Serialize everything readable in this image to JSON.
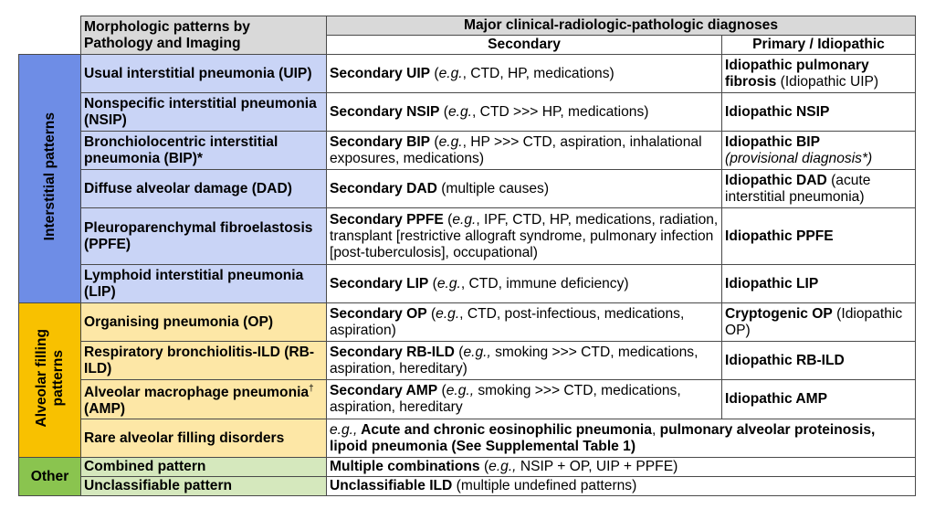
{
  "header": {
    "morpho_line1": "Morphologic patterns by",
    "morpho_line2": "Pathology and Imaging",
    "major": "Major clinical-radiologic-pathologic  diagnoses",
    "secondary": "Secondary",
    "primary": "Primary / Idiopathic"
  },
  "categories": {
    "interstitial": "Interstitial patterns",
    "alveolar_line1": "Alveolar filling",
    "alveolar_line2": "patterns",
    "other": "Other"
  },
  "rows": [
    {
      "pattern": "Usual interstitial pneumonia (UIP)",
      "sec_bold": "Secondary UIP",
      "sec_open": " (",
      "sec_eg": "e.g.",
      "sec_rest": ", CTD, HP, medications)",
      "pri_bold": "Idiopathic pulmonary fibrosis",
      "pri_rest": " (Idiopathic UIP)"
    },
    {
      "pattern": "Nonspecific interstitial pneumonia (NSIP)",
      "sec_bold": "Secondary NSIP",
      "sec_open": " (",
      "sec_eg": "e.g.",
      "sec_rest": ", CTD >>> HP, medications)",
      "pri_bold": "Idiopathic NSIP"
    },
    {
      "pattern": "Bronchiolocentric interstitial pneumonia (BIP)*",
      "sec_bold": "Secondary BIP",
      "sec_open": " (",
      "sec_eg": "e.g.",
      "sec_rest": ", HP >>> CTD, aspiration, inhalational  exposures,  medications)",
      "pri_bold": "Idiopathic BIP",
      "pri_italic": "(provisional diagnosis*)"
    },
    {
      "pattern": "Diffuse alveolar damage (DAD)",
      "sec_bold": "Secondary DAD",
      "sec_rest": " (multiple causes)",
      "pri_bold": "Idiopathic DAD",
      "pri_rest": " (acute interstitial  pneumonia)"
    },
    {
      "pattern": "Pleuroparenchymal fibroelastosis  (PPFE)",
      "sec_bold": "Secondary PPFE",
      "sec_open": " (",
      "sec_eg": "e.g.",
      "sec_rest": ", IPF, CTD, HP, medications, radiation, transplant [restrictive allograft syndrome, pulmonary infection [post-tuberculosis],  occupational)",
      "pri_bold": "Idiopathic PPFE"
    },
    {
      "pattern": "Lymphoid interstitial pneumonia (LIP)",
      "sec_bold": "Secondary LIP",
      "sec_open": " (",
      "sec_eg": "e.g.",
      "sec_rest": ", CTD, immune deficiency)",
      "pri_bold": "Idiopathic LIP"
    },
    {
      "pattern": "Organising pneumonia (OP)",
      "sec_bold": "Secondary OP",
      "sec_open": " (",
      "sec_eg": "e.g.",
      "sec_rest": ", CTD, post-infectious, medications, aspiration)",
      "pri_bold": "Cryptogenic OP",
      "pri_rest": " (Idiopathic OP)"
    },
    {
      "pattern": "Respiratory bronchiolitis-ILD (RB-ILD)",
      "sec_bold": "Secondary RB-ILD",
      "sec_open": " (",
      "sec_eg": "e.g.,",
      "sec_rest": " smoking >>> CTD, medications, aspiration,  hereditary)",
      "pri_bold": "Idiopathic RB-ILD"
    },
    {
      "pattern_a": "Alveolar macrophage pneumonia",
      "pattern_sup": "†",
      "pattern_b": " (AMP)",
      "sec_bold": "Secondary AMP",
      "sec_open": " (",
      "sec_eg": "e.g.,",
      "sec_rest": " smoking >>> CTD, medications, aspiration, hereditary",
      "pri_bold": "Idiopathic AMP"
    },
    {
      "pattern": "Rare alveolar filling disorders",
      "rare_eg": "e.g.,",
      "rare_bold1": " Acute and chronic eosinophilic pneumonia",
      "rare_comma": ", ",
      "rare_bold2": "pulmonary alveolar proteinosis, lipoid pneumonia",
      "rare_see": " (See ",
      "rare_bold3": "Supplemental Table 1",
      "rare_close": ")"
    },
    {
      "pattern": "Combined pattern",
      "sec_bold": "Multiple combinations",
      "sec_open": " (",
      "sec_eg": "e.g.,",
      "sec_rest": " NSIP + OP, UIP + PPFE)"
    },
    {
      "pattern": "Unclassifiable pattern",
      "sec_bold": "Unclassifiable ILD",
      "sec_rest": " (multiple undefined patterns)"
    }
  ],
  "colors": {
    "interstitial_category": "#6e8de6",
    "interstitial_pattern": "#c9d4f6",
    "alveolar_category": "#f8c100",
    "alveolar_pattern": "#fde7a6",
    "other_category": "#8ac44f",
    "other_pattern": "#d5e8bd",
    "header": "#d9d9d9"
  }
}
